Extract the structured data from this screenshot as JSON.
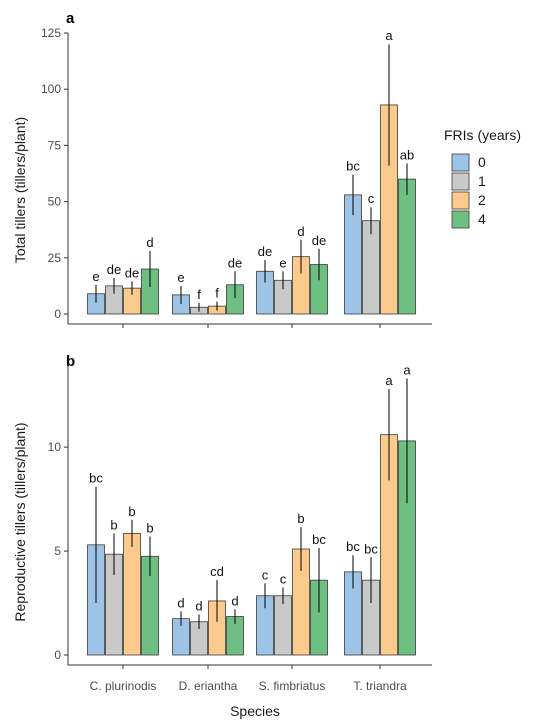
{
  "figure": {
    "xlabel": "Species",
    "legend_title": "FRIs (years)"
  },
  "colors": {
    "0": "#9dc3e6",
    "1": "#c9c9c9",
    "2": "#fbcb8e",
    "4": "#6fbf83",
    "stroke": "#3a3a3a",
    "axis": "#333333"
  },
  "chart_data": [
    {
      "type": "bar",
      "panel": "a",
      "ylabel": "Total tillers (tillers/plant)",
      "ylim": [
        0,
        125
      ],
      "yticks": [
        0,
        25,
        50,
        75,
        100,
        125
      ],
      "categories": [
        "C. plurinodis",
        "D. eriantha",
        "S. fimbriatus",
        "T. triandra"
      ],
      "series": [
        {
          "name": "0",
          "values": [
            9,
            8.5,
            19,
            53
          ],
          "err": [
            4,
            4,
            5,
            9
          ],
          "letters": [
            "e",
            "e",
            "de",
            "bc"
          ]
        },
        {
          "name": "1",
          "values": [
            12.5,
            3,
            15,
            41.5
          ],
          "err": [
            3.5,
            2,
            4,
            6
          ],
          "letters": [
            "de",
            "f",
            "e",
            "c"
          ]
        },
        {
          "name": "2",
          "values": [
            11.5,
            3.5,
            25.5,
            93
          ],
          "err": [
            3,
            2,
            7.5,
            27
          ],
          "letters": [
            "de",
            "f",
            "d",
            "a"
          ]
        },
        {
          "name": "4",
          "values": [
            20,
            13,
            22,
            60
          ],
          "err": [
            8,
            6,
            7,
            7
          ],
          "letters": [
            "d",
            "de",
            "de",
            "ab"
          ]
        }
      ]
    },
    {
      "type": "bar",
      "panel": "b",
      "ylabel": "Reproductive tillers (tillers/plant)",
      "ylim": [
        0,
        14
      ],
      "yticks": [
        0,
        5,
        10
      ],
      "categories": [
        "C. plurinodis",
        "D. eriantha",
        "S. fimbriatus",
        "T. triandra"
      ],
      "series": [
        {
          "name": "0",
          "values": [
            5.3,
            1.75,
            2.85,
            4.0
          ],
          "err": [
            2.8,
            0.35,
            0.6,
            0.8
          ],
          "letters": [
            "bc",
            "d",
            "c",
            "bc"
          ]
        },
        {
          "name": "1",
          "values": [
            4.85,
            1.6,
            2.85,
            3.6
          ],
          "err": [
            1.0,
            0.35,
            0.4,
            1.1
          ],
          "letters": [
            "b",
            "d",
            "c",
            "bc"
          ]
        },
        {
          "name": "2",
          "values": [
            5.85,
            2.6,
            5.1,
            10.6
          ],
          "err": [
            0.65,
            1.0,
            1.05,
            2.2
          ],
          "letters": [
            "b",
            "cd",
            "b",
            "a"
          ]
        },
        {
          "name": "4",
          "values": [
            4.75,
            1.85,
            3.6,
            10.3
          ],
          "err": [
            0.95,
            0.35,
            1.55,
            3.0
          ],
          "letters": [
            "b",
            "d",
            "bc",
            "a"
          ]
        }
      ]
    }
  ]
}
